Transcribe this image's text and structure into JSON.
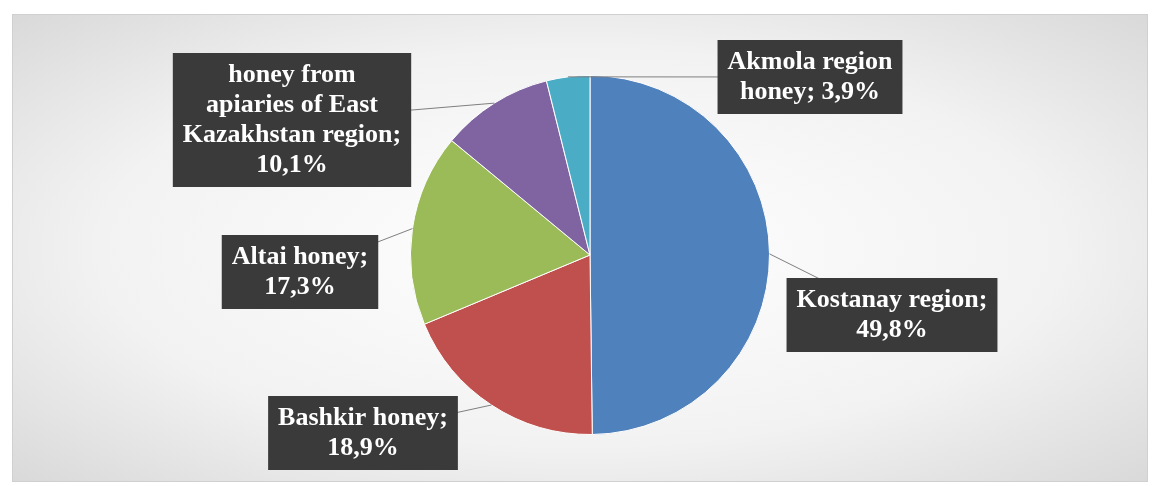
{
  "chart_data": {
    "type": "pie",
    "categories": [
      "Kostanay region",
      "Bashkir honey",
      "Altai honey",
      "honey from apiaries of East Kazakhstan region",
      "Akmola region honey"
    ],
    "values": [
      49.8,
      18.9,
      17.3,
      10.1,
      3.9
    ],
    "value_labels": [
      "; 49,8%",
      "; 18,9%",
      "; 17,3%",
      "; 10,1%",
      "; 3,9%"
    ],
    "colors": [
      "#4f81bd",
      "#c0504d",
      "#9bbb59",
      "#8064a2",
      "#4bacc6"
    ],
    "legend": false
  }
}
